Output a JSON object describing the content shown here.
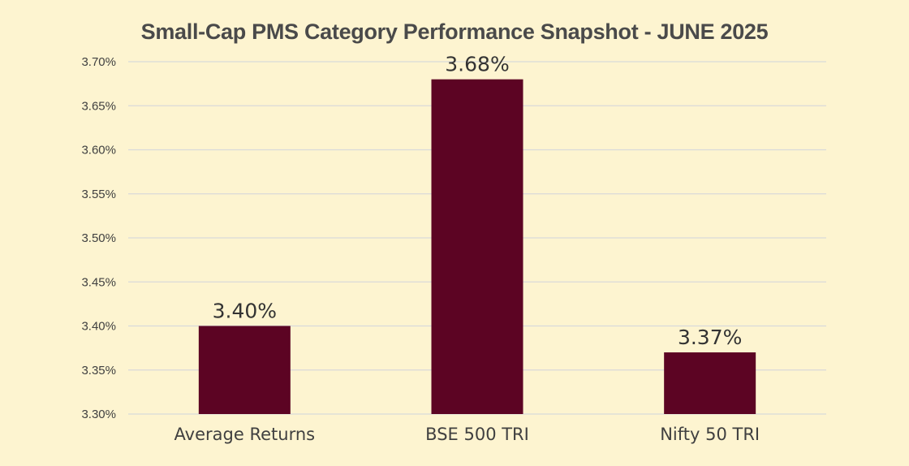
{
  "chart_data": {
    "type": "bar",
    "title": "Small-Cap PMS Category Performance Snapshot - JUNE 2025",
    "xlabel": "",
    "ylabel": "",
    "categories": [
      "Average Returns",
      "BSE 500 TRI",
      "Nifty 50 TRI"
    ],
    "values": [
      3.4,
      3.68,
      3.37
    ],
    "data_labels": [
      "3.40%",
      "3.68%",
      "3.37%"
    ],
    "ylim": [
      3.3,
      3.7
    ],
    "yticks": [
      3.3,
      3.35,
      3.4,
      3.45,
      3.5,
      3.55,
      3.6,
      3.65,
      3.7
    ],
    "ytick_labels": [
      "3.30%",
      "3.35%",
      "3.40%",
      "3.45%",
      "3.50%",
      "3.55%",
      "3.60%",
      "3.65%",
      "3.70%"
    ],
    "grid": true,
    "legend": "none",
    "bar_color": "#5c0423",
    "background_color": "#fdf4d0"
  }
}
